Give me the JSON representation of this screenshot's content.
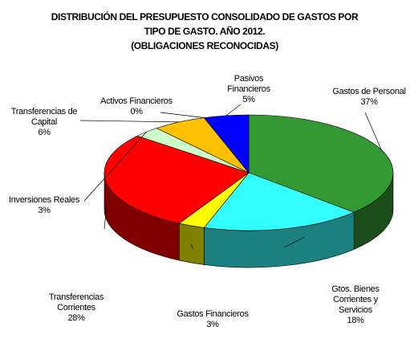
{
  "chart_data": {
    "type": "pie3d",
    "title": "DISTRIBUCIÓN DEL PRESUPUESTO CONSOLIDADO DE GASTOS POR TIPO DE GASTO. AÑO 2012.",
    "subtitle": "(OBLIGACIONES RECONOCIDAS)",
    "categories": [
      "Gastos de Personal",
      "Gtos. Bienes Corrientes y Servicios",
      "Gastos Financieros",
      "Transferencias Corrientes",
      "Inversiones Reales",
      "Transferencias de Capital",
      "Activos Financieros",
      "Pasivos Financieros"
    ],
    "values": [
      37,
      18,
      3,
      28,
      3,
      6,
      0,
      5
    ],
    "value_labels": [
      "37%",
      "18%",
      "3%",
      "28%",
      "3%",
      "6%",
      "0%",
      "5%"
    ],
    "colors": [
      "#339933",
      "#33ffff",
      "#ffff00",
      "#ff0000",
      "#ccffcc",
      "#ffc000",
      "#9999ff",
      "#0000ff"
    ]
  }
}
